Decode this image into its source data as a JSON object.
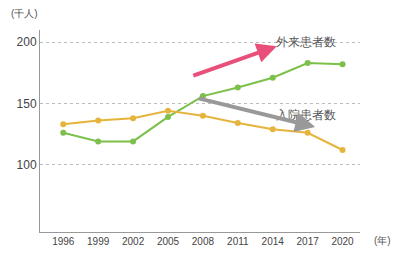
{
  "chart_data": {
    "type": "line",
    "xlabel": "(年)",
    "ylabel": "(千人)",
    "x": [
      1996,
      1999,
      2002,
      2005,
      2008,
      2011,
      2014,
      2017,
      2020
    ],
    "series": [
      {
        "name": "外来患者数",
        "color": "#7cc04b",
        "values": [
          126,
          119,
          119,
          139,
          156,
          163,
          171,
          183,
          182
        ]
      },
      {
        "name": "入院患者数",
        "color": "#e6b43c",
        "values": [
          133,
          136,
          138,
          144,
          140,
          134,
          129,
          126,
          112
        ]
      }
    ],
    "xlim": [
      1994,
      2021.5
    ],
    "xticks": [
      1996,
      1999,
      2002,
      2005,
      2008,
      2011,
      2014,
      2017,
      2020
    ],
    "ylim": [
      45,
      210
    ],
    "yticks": [
      100,
      150,
      200
    ],
    "grid": true,
    "marker": "circle"
  }
}
